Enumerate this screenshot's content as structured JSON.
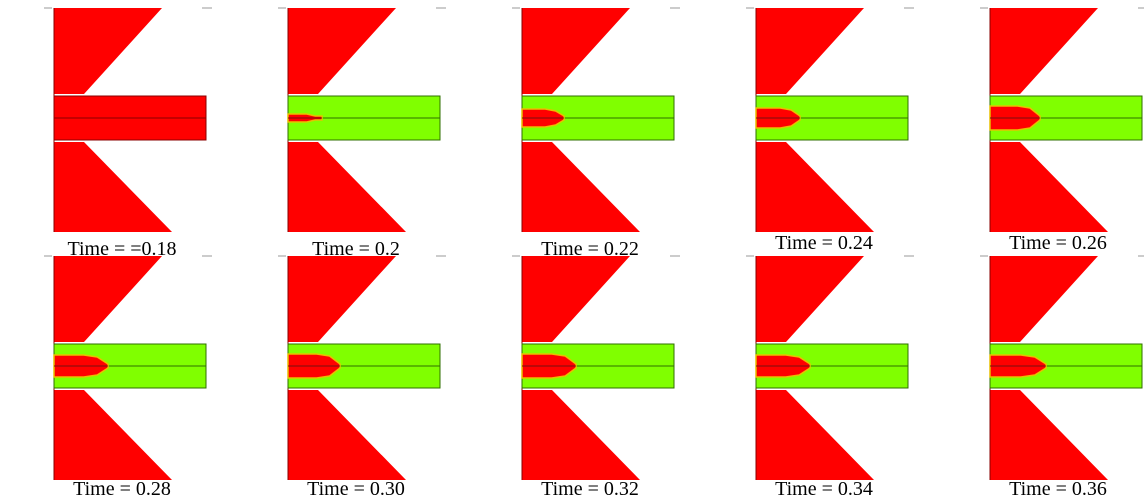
{
  "colors": {
    "solid": "#ff0000",
    "fluid": "#80ff00",
    "interface": "#e8c000",
    "axis": "#2f6f00",
    "frame": "#999999"
  },
  "panels": [
    {
      "caption": "Time = =0.18",
      "time": 0.18,
      "jet": false
    },
    {
      "caption": "Time = 0.2",
      "time": 0.2,
      "jet": true
    },
    {
      "caption": "Time = 0.22",
      "time": 0.22,
      "jet": true
    },
    {
      "caption": "Time = 0.24",
      "time": 0.24,
      "jet": true
    },
    {
      "caption": "Time = 0.26",
      "time": 0.26,
      "jet": true
    },
    {
      "caption": "Time = 0.28",
      "time": 0.28,
      "jet": true
    },
    {
      "caption": "Time = 0.30",
      "time": 0.3,
      "jet": true
    },
    {
      "caption": "Time = 0.32",
      "time": 0.32,
      "jet": true
    },
    {
      "caption": "Time = 0.34",
      "time": 0.34,
      "jet": true
    },
    {
      "caption": "Time = 0.36",
      "time": 0.36,
      "jet": true
    }
  ]
}
